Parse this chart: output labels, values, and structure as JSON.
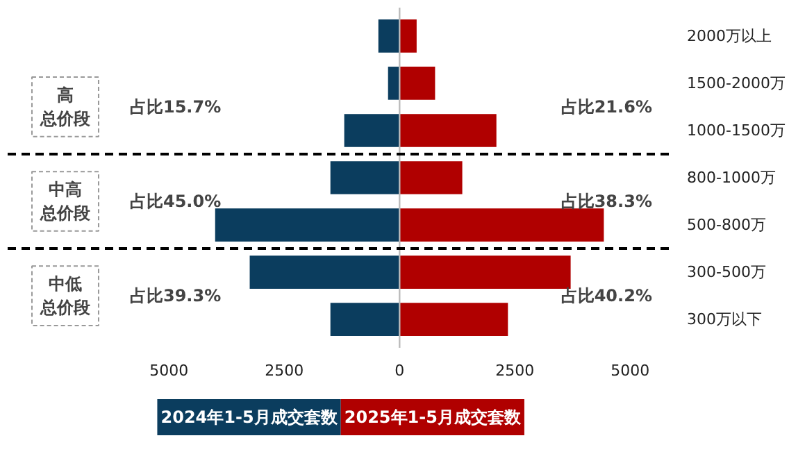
{
  "chart_data": {
    "type": "bar",
    "orientation": "horizontal",
    "categories": [
      "2000万以上",
      "1500-2000万",
      "1000-1500万",
      "800-1000万",
      "500-800万",
      "300-500万",
      "300万以下"
    ],
    "series": [
      {
        "name": "2024年1-5月成交套数",
        "color": "#0b3d5e",
        "values": [
          -460,
          -250,
          -1200,
          -1500,
          -4000,
          -3250,
          -1500
        ]
      },
      {
        "name": "2025年1-5月成交套数",
        "color": "#b00000",
        "values": [
          370,
          770,
          2100,
          1360,
          4430,
          3710,
          2350
        ]
      }
    ],
    "xlim": [
      -8500,
      5900
    ],
    "xticks": [
      {
        "value": -5000,
        "label": "5000"
      },
      {
        "value": -2500,
        "label": "2500"
      },
      0,
      2500,
      5000
    ],
    "ref_lines": [
      {
        "axis": "x",
        "value": 0,
        "color": "#bbbbbb",
        "line_style": "solid"
      }
    ],
    "annotations": [
      "高总价段",
      "占比15.7%",
      "占比21.6%",
      "中高总价段",
      "占比45.0%",
      "占比38.3%",
      "中低总价段",
      "占比39.3%",
      "占比40.2%"
    ],
    "stacked": true,
    "grid": false,
    "legend": "bottom"
  }
}
